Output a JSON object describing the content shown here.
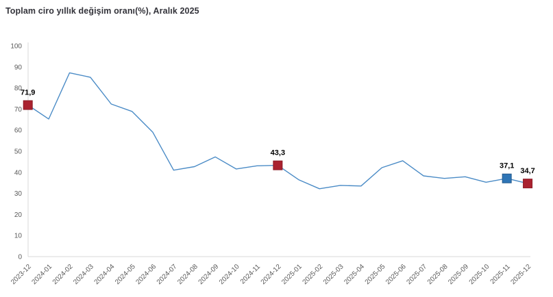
{
  "title": "Toplam ciro yıllık değişim oranı(%), Aralık 2025",
  "chart_data": {
    "type": "line",
    "title": "Toplam ciro yıllık değişim oranı(%), Aralık 2025",
    "categories": [
      "2023-12",
      "2024-01",
      "2024-02",
      "2024-03",
      "2024-04",
      "2024-05",
      "2024-06",
      "2024-07",
      "2024-08",
      "2024-09",
      "2024-10",
      "2024-11",
      "2024-12",
      "2025-01",
      "2025-02",
      "2025-03",
      "2025-04",
      "2025-05",
      "2025-06",
      "2025-07",
      "2025-08",
      "2025-09",
      "2025-10",
      "2025-11",
      "2025-12"
    ],
    "values": [
      71.9,
      65.3,
      87.2,
      85.1,
      72.4,
      68.9,
      59.0,
      41.0,
      42.7,
      47.3,
      41.6,
      43.1,
      43.3,
      36.5,
      32.2,
      33.8,
      33.5,
      42.2,
      45.5,
      38.3,
      37.1,
      37.9,
      35.3,
      37.1,
      34.7
    ],
    "xlabel": "",
    "ylabel": "",
    "ylim": [
      0,
      100
    ],
    "yticks": [
      0,
      10,
      20,
      30,
      40,
      50,
      60,
      70,
      80,
      90,
      100
    ],
    "grid": false,
    "legend_position": "none",
    "line_color": "#4a8bc6",
    "axis_color": "#d9d9d9",
    "tick_label_color": "#595959",
    "marker_points": [
      {
        "index": 0,
        "label": "71,9",
        "fill": "#aa2230",
        "border": "#8c1b26"
      },
      {
        "index": 12,
        "label": "43,3",
        "fill": "#aa2230",
        "border": "#8c1b26"
      },
      {
        "index": 23,
        "label": "37,1",
        "fill": "#2e75b6",
        "border": "#24598c"
      },
      {
        "index": 24,
        "label": "34,7",
        "fill": "#aa2230",
        "border": "#8c1b26"
      }
    ]
  }
}
